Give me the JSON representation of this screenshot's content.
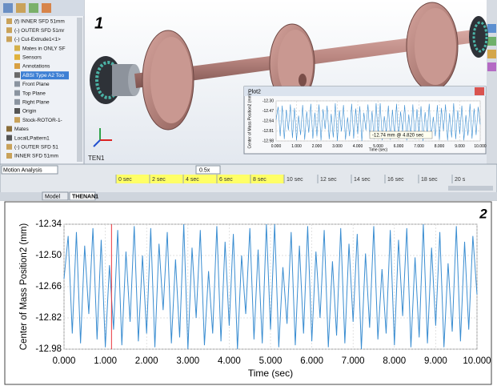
{
  "panel1": {
    "number": "1",
    "tree": [
      "(f) INNER SFD 51mm",
      "(-) OUTER SFD 51mr",
      "(-) Cut-Extrude1<1>",
      "Mates in ONLY SF",
      "Sensors",
      "Annotations",
      "ABSI Type A2 Too",
      "Front Plane",
      "Top Plane",
      "Right Plane",
      "Origin",
      "Stock-ROTOR-1-",
      "Mates",
      "LocalLPattern1",
      "(-) OUTER SFD 51",
      "INNER SFD 51mm"
    ],
    "viewport_label": "TEN1",
    "toolbar": {
      "mode": "Motion Analysis",
      "speed": "0.5x"
    },
    "timeline": [
      "0 sec",
      "2 sec",
      "4 sec",
      "6 sec",
      "8 sec",
      "10 sec",
      "12 sec",
      "14 sec",
      "16 sec",
      "18 sec",
      "20 s"
    ],
    "tabs": [
      "Model",
      "THENAN1"
    ],
    "plot_window": {
      "title": "Plot2",
      "ylim": [
        -12.98,
        -12.3
      ],
      "yticks": [
        {
          "value": -12.3,
          "label": "-12.30"
        },
        -12.47,
        -12.64,
        -12.81,
        -12.98
      ],
      "tooltip": "-12.74 mm @ 4.820 sec"
    }
  },
  "chart_data": {
    "type": "line",
    "panel_number": "2",
    "x_label": "Time (sec)",
    "y_label": "Center of Mass Position2 (mm)",
    "x": [
      0,
      0.1,
      0.2,
      0.3,
      0.4,
      0.5,
      0.6,
      0.7,
      0.8,
      0.9,
      1,
      1.1,
      1.2,
      1.3,
      1.4,
      1.5,
      1.6,
      1.7,
      1.8,
      1.9,
      2,
      2.1,
      2.2,
      2.3,
      2.4,
      2.5,
      2.6,
      2.7,
      2.8,
      2.9,
      3,
      3.1,
      3.2,
      3.3,
      3.4,
      3.5,
      3.6,
      3.7,
      3.8,
      3.9,
      4,
      4.1,
      4.2,
      4.3,
      4.4,
      4.5,
      4.6,
      4.7,
      4.8,
      4.9,
      5,
      5.1,
      5.2,
      5.3,
      5.4,
      5.5,
      5.6,
      5.7,
      5.8,
      5.9,
      6,
      6.1,
      6.2,
      6.3,
      6.4,
      6.5,
      6.6,
      6.7,
      6.8,
      6.9,
      7,
      7.1,
      7.2,
      7.3,
      7.4,
      7.5,
      7.6,
      7.7,
      7.8,
      7.9,
      8,
      8.1,
      8.2,
      8.3,
      8.4,
      8.5,
      8.6,
      8.7,
      8.8,
      8.9,
      9,
      9.1,
      9.2,
      9.3,
      9.4,
      9.5,
      9.6,
      9.7,
      9.8,
      9.9,
      10
    ],
    "series": [
      {
        "color": "#3a8dd1",
        "values": [
          -12.62,
          -12.4,
          -12.9,
          -12.38,
          -12.95,
          -12.45,
          -12.8,
          -12.36,
          -12.93,
          -12.42,
          -12.97,
          -12.55,
          -12.88,
          -12.37,
          -12.96,
          -12.48,
          -12.84,
          -12.35,
          -12.94,
          -12.5,
          -12.9,
          -12.36,
          -12.97,
          -12.44,
          -12.78,
          -12.38,
          -12.95,
          -12.52,
          -12.92,
          -12.34,
          -12.98,
          -12.46,
          -12.82,
          -12.37,
          -12.96,
          -12.58,
          -12.9,
          -12.35,
          -12.94,
          -12.43,
          -12.86,
          -12.39,
          -12.98,
          -12.5,
          -12.8,
          -12.36,
          -12.93,
          -12.47,
          -12.95,
          -12.34,
          -12.88,
          -12.34,
          -12.97,
          -12.56,
          -12.85,
          -12.38,
          -12.96,
          -12.45,
          -12.9,
          -12.35,
          -12.94,
          -12.48,
          -12.82,
          -12.37,
          -12.97,
          -12.53,
          -12.91,
          -12.36,
          -12.95,
          -12.44,
          -12.84,
          -12.39,
          -12.98,
          -12.49,
          -12.87,
          -12.35,
          -12.93,
          -12.57,
          -12.9,
          -12.37,
          -12.96,
          -12.42,
          -12.81,
          -12.36,
          -12.97,
          -12.51,
          -12.92,
          -12.34,
          -12.95,
          -12.46,
          -12.86,
          -12.38,
          -12.97,
          -12.54,
          -12.89,
          -12.35,
          -12.94,
          -12.43,
          -12.88,
          -12.4,
          -12.7
        ]
      }
    ],
    "xlim": [
      0,
      10
    ],
    "ylim": [
      -12.98,
      -12.34
    ],
    "xticks": [
      {
        "value": 0,
        "label": "0.000"
      },
      {
        "value": 1,
        "label": "1.000"
      },
      {
        "value": 2,
        "label": "2.000"
      },
      {
        "value": 3,
        "label": "3.000"
      },
      {
        "value": 4,
        "label": "4.000"
      },
      {
        "value": 5,
        "label": "5.000"
      },
      {
        "value": 6,
        "label": "6.000"
      },
      {
        "value": 7,
        "label": "7.000"
      },
      {
        "value": 8,
        "label": "8.000"
      },
      {
        "value": 9,
        "label": "9.000"
      },
      {
        "value": 10,
        "label": "10.000"
      }
    ],
    "yticks": [
      -12.34,
      {
        "value": -12.5,
        "label": "-12.50"
      },
      -12.66,
      -12.82,
      -12.98
    ],
    "grid": true,
    "cursor": {
      "x": 1.15,
      "color": "#e8333a"
    }
  }
}
